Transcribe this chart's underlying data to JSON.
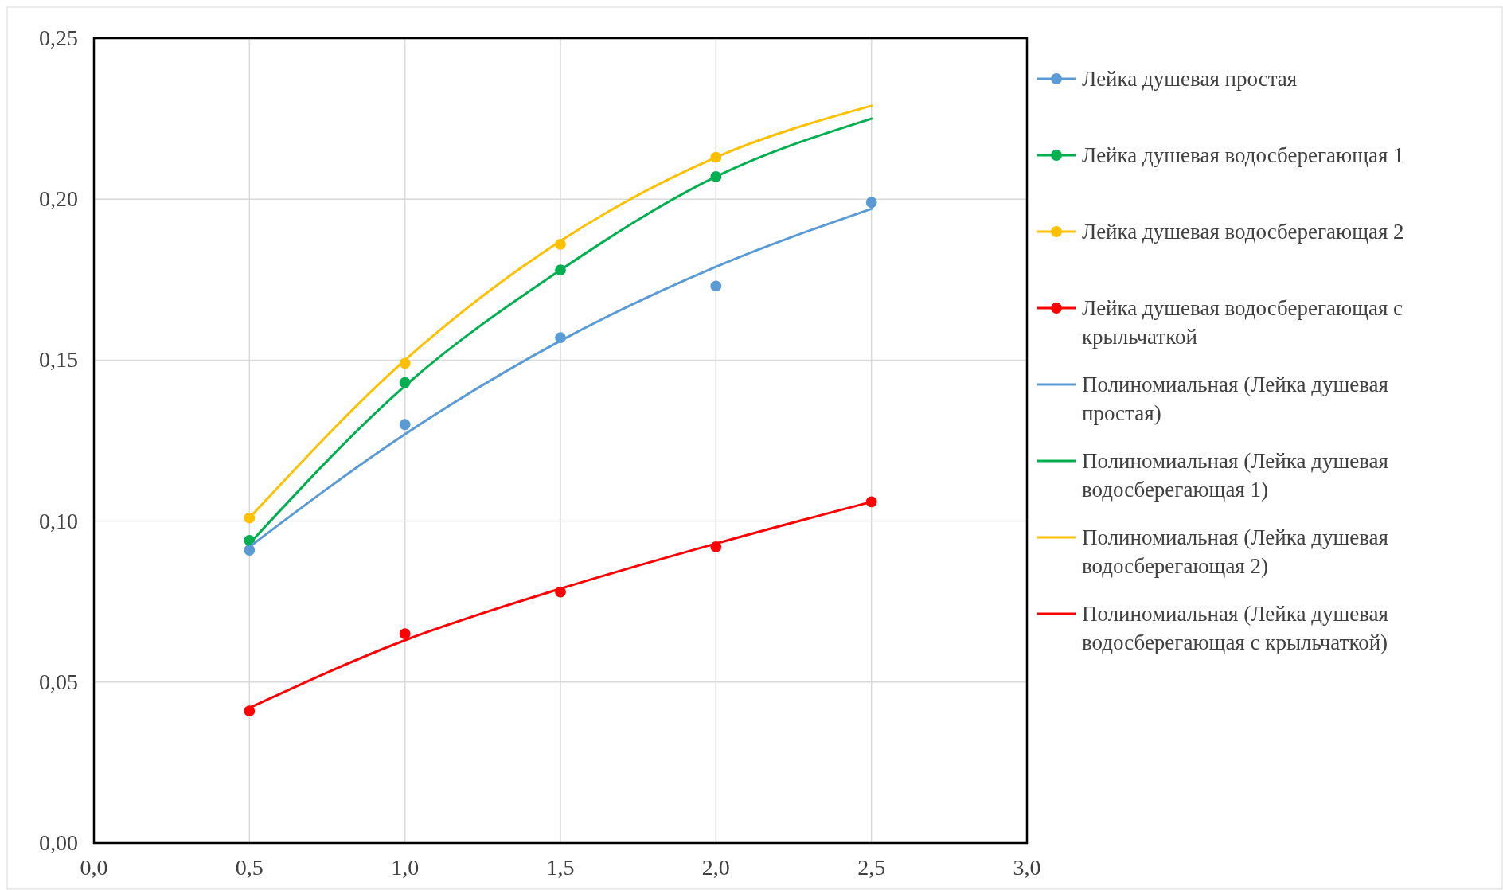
{
  "chart_data": {
    "type": "scatter",
    "xlim": [
      0,
      3
    ],
    "ylim": [
      0,
      0.25
    ],
    "xticks": [
      {
        "value": 0,
        "label": "0,0"
      },
      {
        "value": 0.5,
        "label": "0,5"
      },
      {
        "value": 1,
        "label": "1,0"
      },
      {
        "value": 1.5,
        "label": "1,5"
      },
      {
        "value": 2,
        "label": "2,0"
      },
      {
        "value": 2.5,
        "label": "2,5"
      },
      {
        "value": 3,
        "label": "3,0"
      }
    ],
    "yticks": [
      {
        "value": 0,
        "label": "0,00"
      },
      {
        "value": 0.05,
        "label": "0,05"
      },
      {
        "value": 0.1,
        "label": "0,10"
      },
      {
        "value": 0.15,
        "label": "0,15"
      },
      {
        "value": 0.2,
        "label": "0,20"
      },
      {
        "value": 0.25,
        "label": "0,25"
      }
    ],
    "grid": true,
    "legend": "right",
    "series": [
      {
        "name": "Лейка душевая простая",
        "marker": "circle",
        "color": "#5b9bd5",
        "x": [
          0.5,
          1,
          1.5,
          2,
          2.5
        ],
        "values": [
          0.091,
          0.13,
          0.157,
          0.173,
          0.199
        ]
      },
      {
        "name": "Лейка душевая водосберегающая 1",
        "marker": "circle",
        "color": "#00b050",
        "x": [
          0.5,
          1,
          1.5,
          2
        ],
        "values": [
          0.094,
          0.143,
          0.178,
          0.207
        ]
      },
      {
        "name": "Лейка душевая водосберегающая 2",
        "marker": "circle",
        "color": "#ffc000",
        "x": [
          0.5,
          1,
          1.5,
          2
        ],
        "values": [
          0.101,
          0.149,
          0.186,
          0.213
        ]
      },
      {
        "name": "Лейка душевая водосберегающая с крыльчаткой",
        "marker": "circle",
        "color": "#ff0000",
        "x": [
          0.5,
          1,
          1.5,
          2,
          2.5
        ],
        "values": [
          0.041,
          0.065,
          0.078,
          0.092,
          0.106
        ]
      },
      {
        "name": "Полиномиальная (Лейка душевая простая)",
        "type": "line",
        "marker": "none",
        "color": "#5b9bd5",
        "x": [
          0.5,
          1,
          1.5,
          2,
          2.5
        ],
        "values": [
          0.092,
          0.127,
          0.156,
          0.179,
          0.197
        ]
      },
      {
        "name": "Полиномиальная (Лейка душевая водосберегающая 1)",
        "type": "line",
        "marker": "none",
        "color": "#00b050",
        "x": [
          0.5,
          1,
          1.5,
          2,
          2.5
        ],
        "values": [
          0.093,
          0.142,
          0.178,
          0.207,
          0.225
        ]
      },
      {
        "name": "Полиномиальная (Лейка душевая водосберегающая 2)",
        "type": "line",
        "marker": "none",
        "color": "#ffc000",
        "x": [
          0.5,
          1,
          1.5,
          2,
          2.5
        ],
        "values": [
          0.101,
          0.15,
          0.187,
          0.213,
          0.229
        ]
      },
      {
        "name": "Полиномиальная (Лейка душевая водосберегающая с крыльчаткой)",
        "type": "line",
        "marker": "none",
        "color": "#ff0000",
        "x": [
          0.5,
          1,
          1.5,
          2,
          2.5
        ],
        "values": [
          0.042,
          0.063,
          0.079,
          0.093,
          0.106
        ]
      }
    ]
  }
}
